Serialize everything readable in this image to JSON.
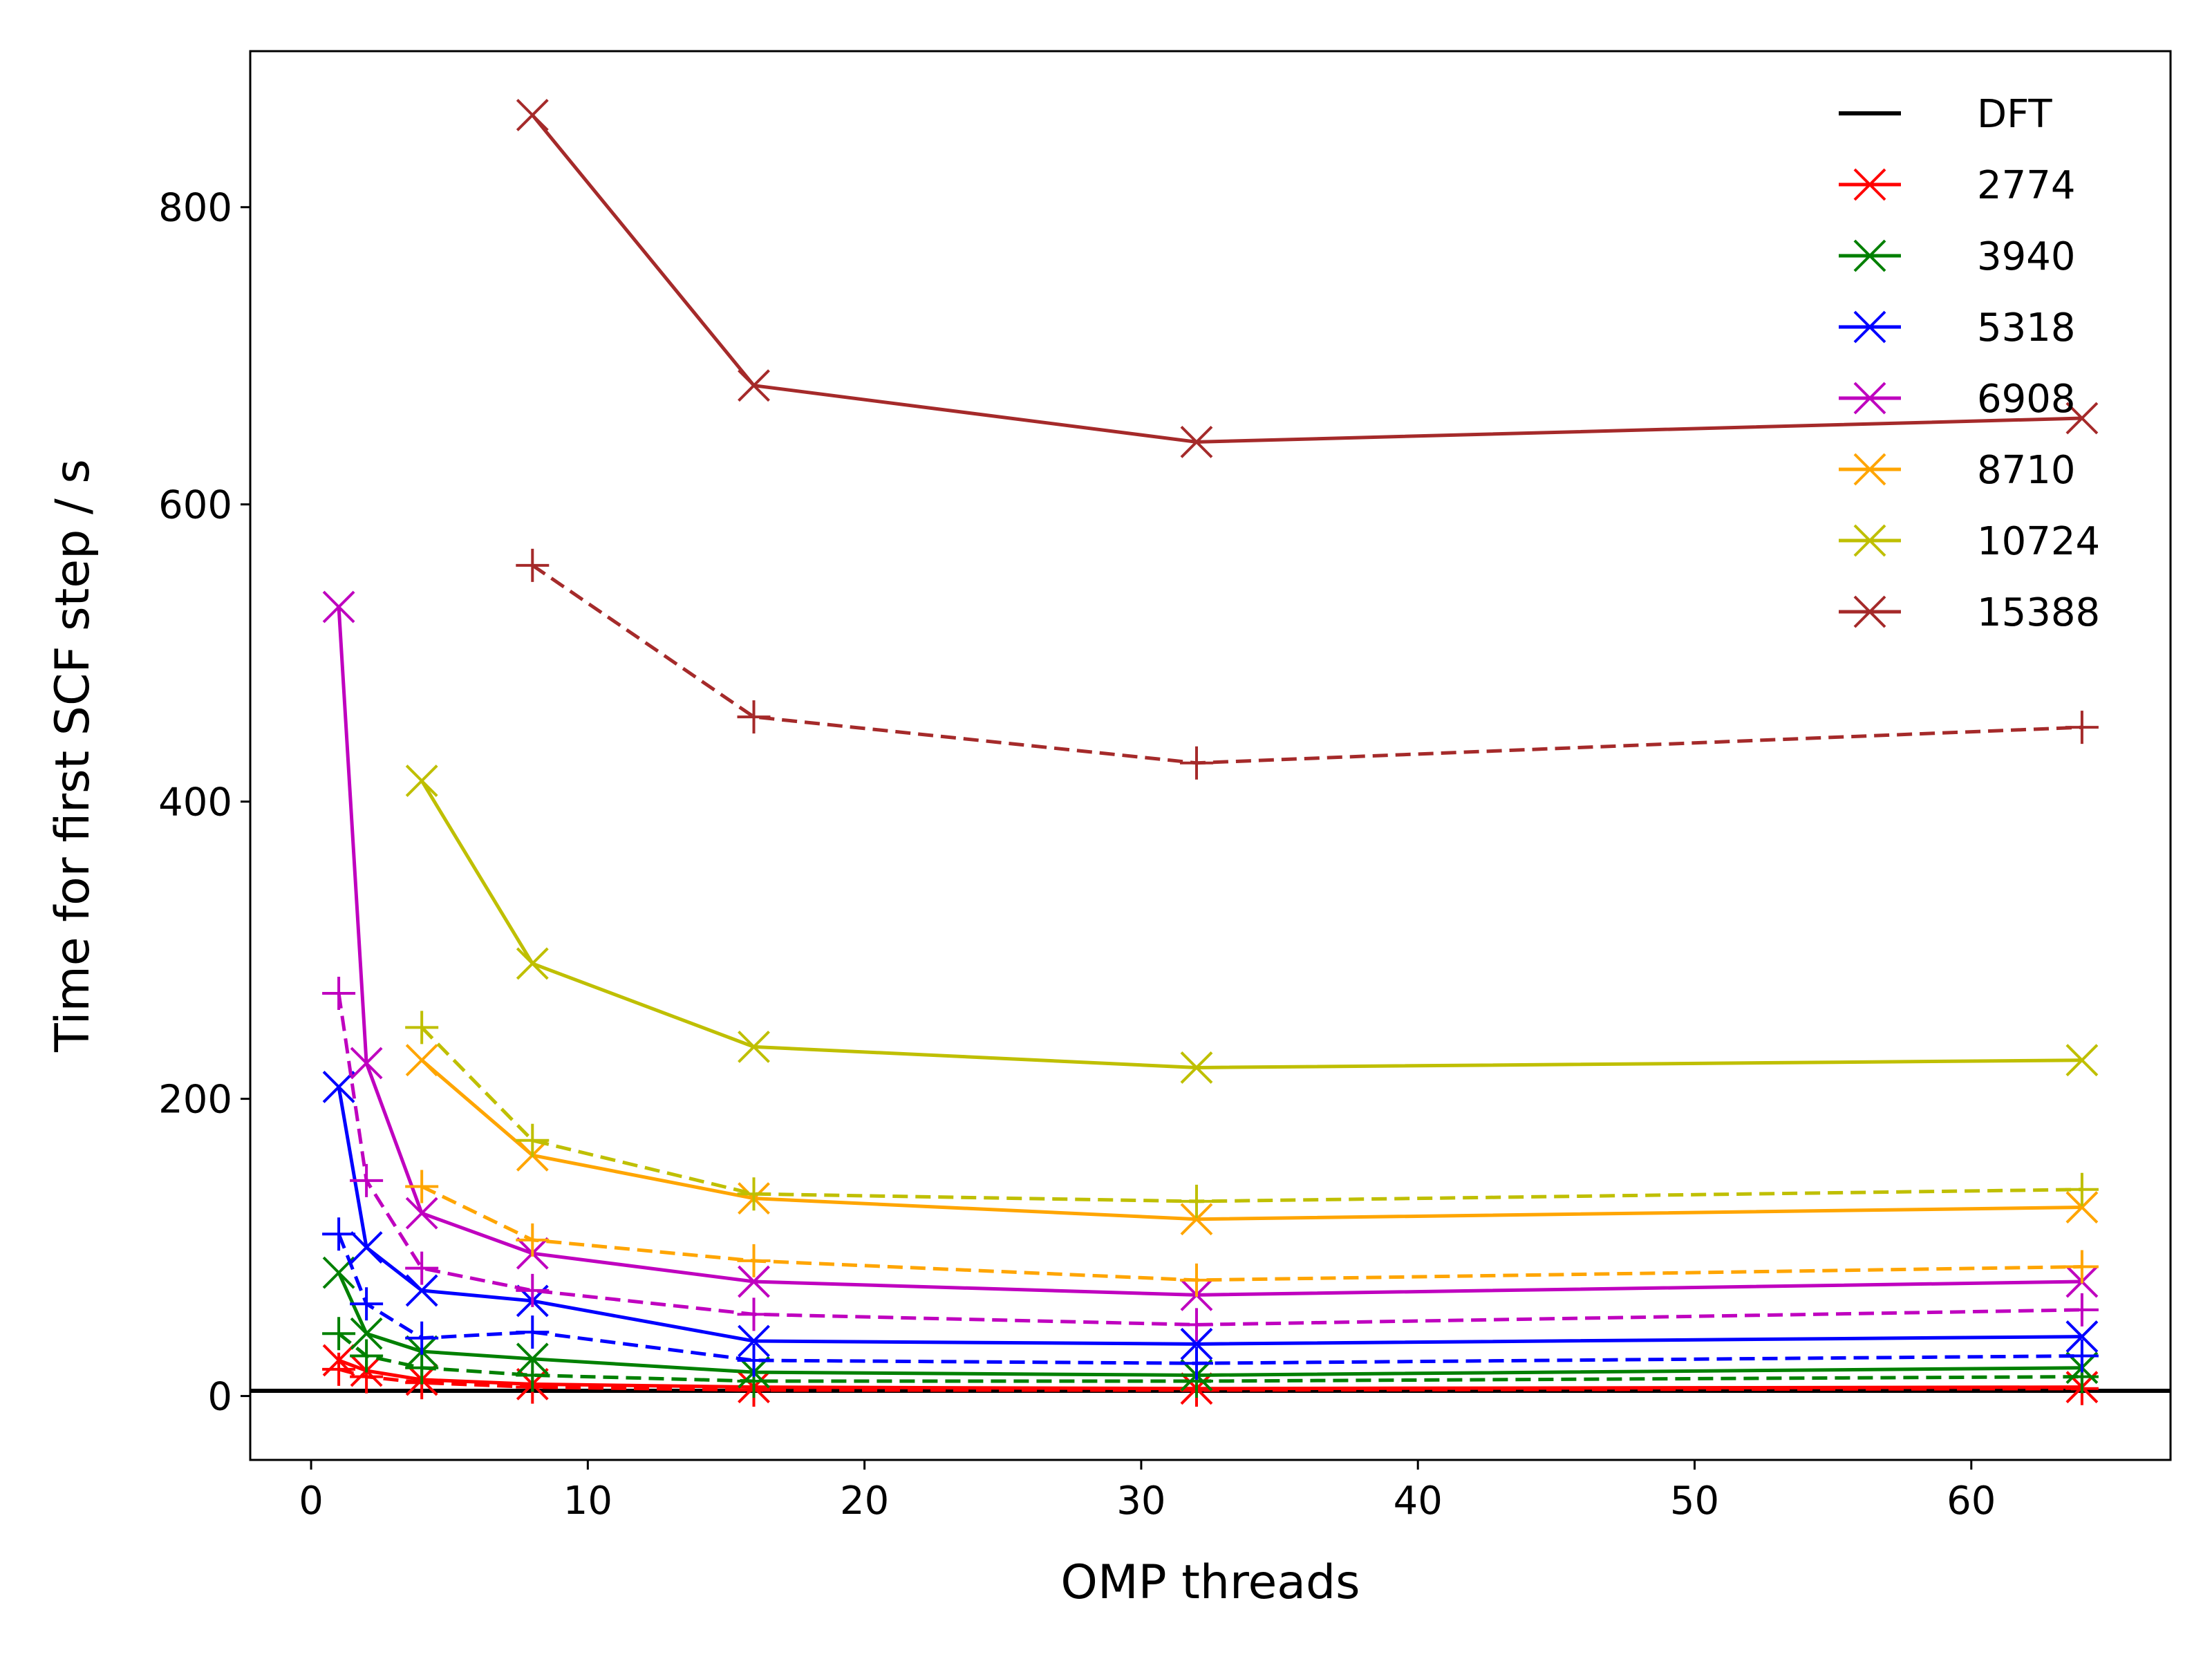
{
  "chart_data": {
    "type": "line",
    "xlabel": "OMP threads",
    "ylabel": "Time for first SCF step / s",
    "xlim": [
      -2.2,
      67.2
    ],
    "ylim": [
      -43,
      905
    ],
    "xticks": [
      0,
      10,
      20,
      30,
      40,
      50,
      60
    ],
    "yticks": [
      0,
      200,
      400,
      600,
      800
    ],
    "grid": false,
    "legend_position": "top-right",
    "reference_line": {
      "name": "DFT",
      "y": 3.5,
      "color": "#000000"
    },
    "series": [
      {
        "name": "2774",
        "color": "#ff0000",
        "solid": {
          "x": [
            1,
            2,
            4,
            8,
            16,
            32,
            64
          ],
          "y": [
            24,
            17,
            11,
            8,
            6,
            5,
            6
          ]
        },
        "dashed": {
          "x": [
            1,
            2,
            4,
            8,
            16,
            32,
            64
          ],
          "y": [
            18,
            13,
            9,
            6,
            4,
            4,
            5
          ]
        }
      },
      {
        "name": "3940",
        "color": "#008000",
        "solid": {
          "x": [
            1,
            2,
            4,
            8,
            16,
            32,
            64
          ],
          "y": [
            83,
            42,
            30,
            25,
            16,
            14,
            19
          ]
        },
        "dashed": {
          "x": [
            1,
            2,
            4,
            8,
            16,
            32,
            64
          ],
          "y": [
            42,
            27,
            19,
            14,
            10,
            10,
            13
          ]
        }
      },
      {
        "name": "5318",
        "color": "#0000ff",
        "solid": {
          "x": [
            1,
            2,
            4,
            8,
            16,
            32,
            64
          ],
          "y": [
            208,
            100,
            71,
            64,
            37,
            35,
            40
          ]
        },
        "dashed": {
          "x": [
            1,
            2,
            4,
            8,
            16,
            32,
            64
          ],
          "y": [
            109,
            62,
            39,
            43,
            24,
            22,
            27
          ]
        }
      },
      {
        "name": "6908",
        "color": "#bf00bf",
        "solid": {
          "x": [
            1,
            2,
            4,
            8,
            16,
            32,
            64
          ],
          "y": [
            531,
            224,
            123,
            96,
            77,
            68,
            77
          ]
        },
        "dashed": {
          "x": [
            1,
            2,
            4,
            8,
            16,
            32,
            64
          ],
          "y": [
            271,
            145,
            86,
            71,
            55,
            48,
            58
          ]
        }
      },
      {
        "name": "8710",
        "color": "#ffa500",
        "solid": {
          "x": [
            4,
            8,
            16,
            32,
            64
          ],
          "y": [
            226,
            162,
            133,
            119,
            127
          ]
        },
        "dashed": {
          "x": [
            4,
            8,
            16,
            32,
            64
          ],
          "y": [
            141,
            105,
            91,
            78,
            87
          ]
        }
      },
      {
        "name": "10724",
        "color": "#bfbf00",
        "solid": {
          "x": [
            4,
            8,
            16,
            32,
            64
          ],
          "y": [
            414,
            291,
            235,
            221,
            226
          ]
        },
        "dashed": {
          "x": [
            4,
            8,
            16,
            32,
            64
          ],
          "y": [
            248,
            172,
            136,
            131,
            139
          ]
        }
      },
      {
        "name": "15388",
        "color": "#a52a2a",
        "solid": {
          "x": [
            8,
            16,
            32,
            64
          ],
          "y": [
            862,
            680,
            642,
            658
          ]
        },
        "dashed": {
          "x": [
            8,
            16,
            32,
            64
          ],
          "y": [
            559,
            457,
            426,
            450
          ]
        }
      }
    ]
  }
}
